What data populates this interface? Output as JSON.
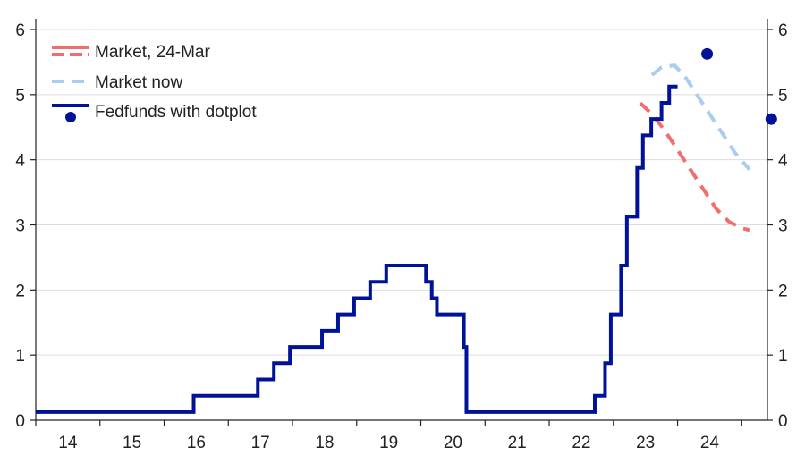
{
  "chart_data": {
    "type": "line",
    "title": "",
    "xlabel": "",
    "ylabel": "",
    "xlim": [
      2013.5,
      2024.9
    ],
    "ylim": [
      0,
      6
    ],
    "y_ticks": [
      0,
      1,
      2,
      3,
      4,
      5,
      6
    ],
    "y_tick_labels": [
      "0",
      "1",
      "2",
      "3",
      "4",
      "5",
      "6"
    ],
    "x_ticks": [
      2014,
      2015,
      2016,
      2017,
      2018,
      2019,
      2020,
      2021,
      2022,
      2023,
      2024
    ],
    "x_tick_labels": [
      "14",
      "15",
      "16",
      "17",
      "18",
      "19",
      "20",
      "21",
      "22",
      "23",
      "24"
    ],
    "grid": "horizontal",
    "legend_position": "top-left",
    "colors": {
      "fedfunds": "#00129a",
      "market_24_mar": "#f26d6d",
      "market_now": "#a9cdf2",
      "dotplot": "#00129a",
      "grid": "#dddddd",
      "axis": "#222222"
    },
    "legend": [
      {
        "label": "Market, 24-Mar",
        "style": "red-dashed-line"
      },
      {
        "label": "Market now",
        "style": "blue-dashed-line"
      },
      {
        "label": "Fedfunds with dotplot",
        "style": "solid-line-and-dot"
      }
    ],
    "series": [
      {
        "name": "Market, 24-Mar",
        "kind": "dashed-line",
        "x": [
          2022.92,
          2023.1,
          2023.3,
          2023.5,
          2023.7,
          2023.9,
          2024.1,
          2024.3,
          2024.5,
          2024.62
        ],
        "y": [
          4.87,
          4.7,
          4.45,
          4.15,
          3.85,
          3.55,
          3.25,
          3.05,
          2.95,
          2.92
        ]
      },
      {
        "name": "Market now",
        "kind": "dashed-line",
        "x": [
          2023.1,
          2023.25,
          2023.45,
          2023.6,
          2023.8,
          2024.0,
          2024.2,
          2024.4,
          2024.62
        ],
        "y": [
          5.3,
          5.42,
          5.45,
          5.3,
          5.0,
          4.7,
          4.4,
          4.1,
          3.85
        ]
      },
      {
        "name": "Fedfunds with dotplot",
        "kind": "step-line",
        "x": [
          2013.5,
          2015.96,
          2016.96,
          2017.21,
          2017.46,
          2017.96,
          2018.21,
          2018.46,
          2018.71,
          2018.96,
          2019.58,
          2019.67,
          2019.75,
          2020.17,
          2020.21,
          2022.21,
          2022.37,
          2022.46,
          2022.62,
          2022.71,
          2022.87,
          2022.96,
          2023.09,
          2023.25,
          2023.37,
          2023.5
        ],
        "y": [
          0.125,
          0.375,
          0.625,
          0.875,
          1.125,
          1.375,
          1.625,
          1.875,
          2.125,
          2.375,
          2.125,
          1.875,
          1.625,
          1.125,
          0.125,
          0.375,
          0.875,
          1.625,
          2.375,
          3.125,
          3.875,
          4.375,
          4.625,
          4.875,
          5.125,
          5.125
        ]
      },
      {
        "name": "Dotplot",
        "kind": "points",
        "x": [
          2023.96,
          2024.96
        ],
        "y": [
          5.625,
          4.625
        ]
      }
    ]
  }
}
